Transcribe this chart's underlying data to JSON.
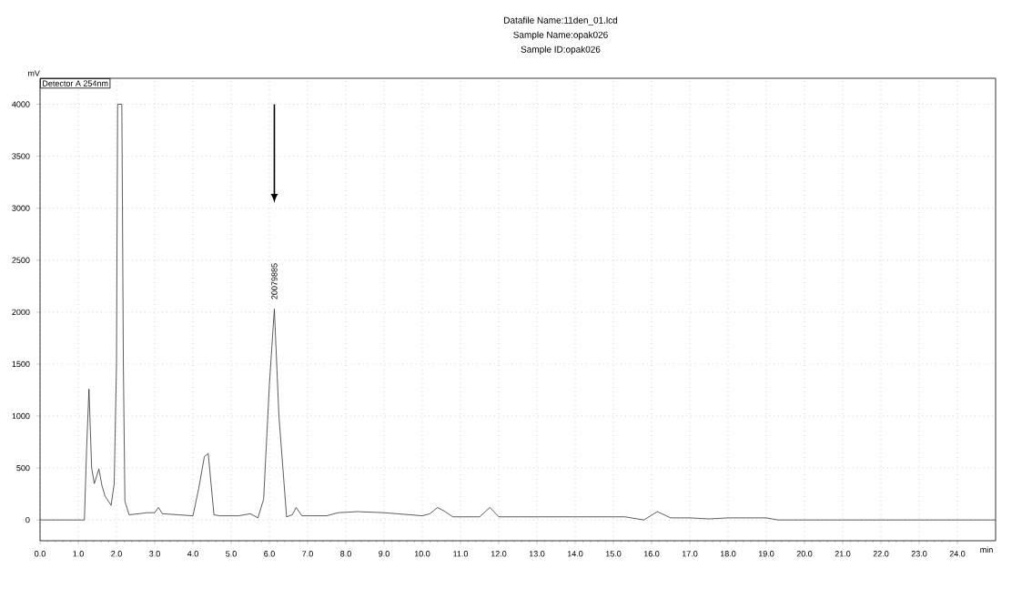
{
  "chart_data": {
    "type": "line",
    "title": "Datafile Name:11den_01.lcd",
    "subtitle": "Sample Name:opak026",
    "xlabel": "min",
    "ylabel": "mV",
    "annotations": [
      "Sample ID:opak026",
      "Detector A 254nm",
      {
        "text": "20079885",
        "x": 6.13,
        "y": 2030
      }
    ],
    "x": [
      0,
      0.5,
      1.0,
      1.16,
      1.22,
      1.28,
      1.35,
      1.42,
      1.54,
      1.62,
      1.7,
      1.86,
      1.94,
      2.0,
      2.03,
      2.14,
      2.18,
      2.22,
      2.33,
      2.6,
      2.8,
      3.0,
      3.1,
      3.2,
      3.6,
      4.0,
      4.15,
      4.3,
      4.4,
      4.55,
      4.7,
      5.2,
      5.5,
      5.7,
      5.85,
      6.0,
      6.13,
      6.25,
      6.45,
      6.6,
      6.7,
      6.85,
      7.5,
      7.8,
      8.3,
      9.0,
      10.0,
      10.2,
      10.4,
      10.6,
      10.8,
      11.5,
      11.77,
      12.0,
      12.5,
      14.0,
      15.3,
      15.8,
      16.15,
      16.5,
      17.0,
      17.5,
      18.0,
      19.0,
      19.3,
      20.0,
      25.0
    ],
    "series": [
      {
        "color": "#333333",
        "values": [
          0,
          0,
          0,
          0,
          700,
          1260,
          500,
          350,
          490,
          330,
          230,
          140,
          350,
          1500,
          4000,
          4000,
          1500,
          180,
          50,
          60,
          70,
          70,
          120,
          60,
          50,
          40,
          300,
          610,
          640,
          50,
          40,
          40,
          60,
          20,
          200,
          1300,
          2030,
          1000,
          30,
          50,
          120,
          40,
          40,
          70,
          80,
          70,
          40,
          60,
          120,
          80,
          30,
          30,
          120,
          30,
          30,
          30,
          30,
          0,
          80,
          20,
          20,
          10,
          20,
          20,
          0,
          0,
          0
        ]
      }
    ],
    "xlim": [
      0,
      25
    ],
    "ylim": [
      -200,
      4250
    ],
    "xticks": [
      {
        "value": 0,
        "label": "0.0"
      },
      {
        "value": 1,
        "label": "1.0"
      },
      {
        "value": 2,
        "label": "2.0"
      },
      {
        "value": 3,
        "label": "3.0"
      },
      {
        "value": 4,
        "label": "4.0"
      },
      {
        "value": 5,
        "label": "5.0"
      },
      {
        "value": 6,
        "label": "6.0"
      },
      {
        "value": 7,
        "label": "7.0"
      },
      {
        "value": 8,
        "label": "8.0"
      },
      {
        "value": 9,
        "label": "9.0"
      },
      {
        "value": 10,
        "label": "10.0"
      },
      {
        "value": 11,
        "label": "11.0"
      },
      {
        "value": 12,
        "label": "12.0"
      },
      {
        "value": 13,
        "label": "13.0"
      },
      {
        "value": 14,
        "label": "14.0"
      },
      {
        "value": 15,
        "label": "15.0"
      },
      {
        "value": 16,
        "label": "16.0"
      },
      {
        "value": 17,
        "label": "17.0"
      },
      {
        "value": 18,
        "label": "18.0"
      },
      {
        "value": 19,
        "label": "19.0"
      },
      {
        "value": 20,
        "label": "20.0"
      },
      {
        "value": 21,
        "label": "21.0"
      },
      {
        "value": 22,
        "label": "22.0"
      },
      {
        "value": 23,
        "label": "23.0"
      },
      {
        "value": 24,
        "label": "24.0"
      }
    ],
    "yticks": [
      0,
      500,
      1000,
      1500,
      2000,
      2500,
      3000,
      3500,
      4000
    ],
    "grid": true,
    "marker": "none",
    "line_style": "solid"
  }
}
